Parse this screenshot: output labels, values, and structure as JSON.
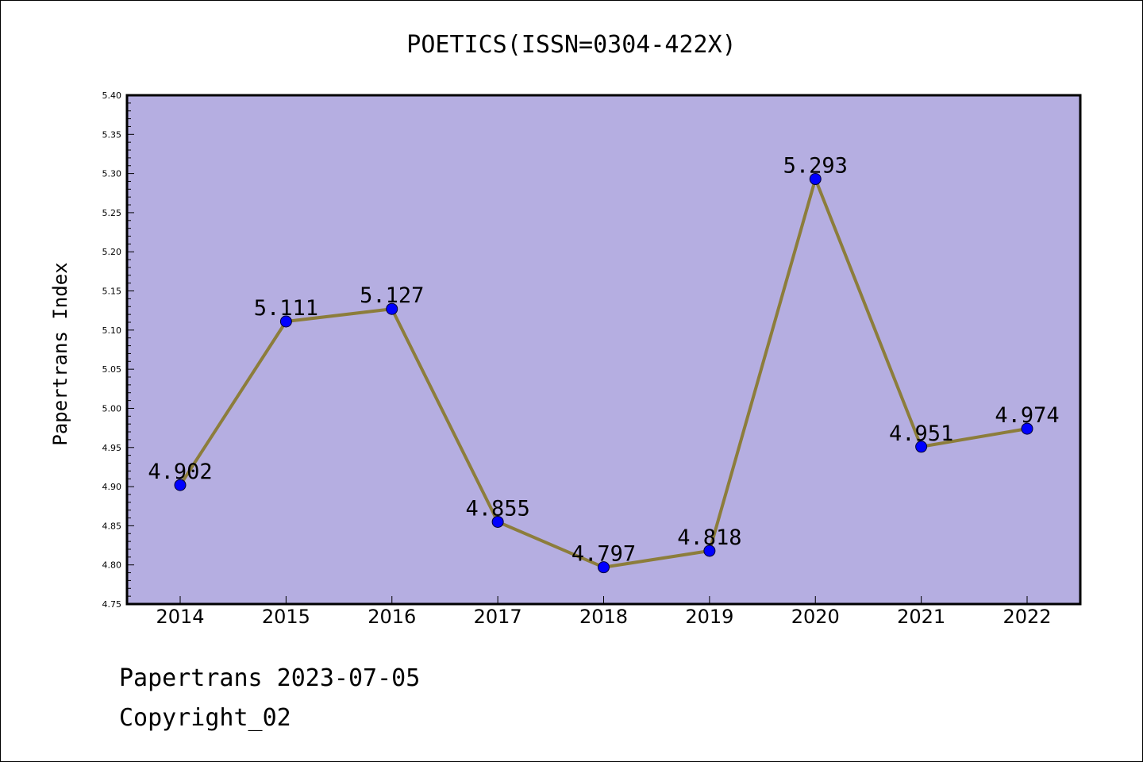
{
  "chart_data": {
    "type": "line",
    "title": "POETICS(ISSN=0304-422X)",
    "xlabel": "",
    "ylabel": "Papertrans Index",
    "categories": [
      "2014",
      "2015",
      "2016",
      "2017",
      "2018",
      "2019",
      "2020",
      "2021",
      "2022"
    ],
    "values": [
      4.902,
      5.111,
      5.127,
      4.855,
      4.797,
      4.818,
      5.293,
      4.951,
      4.974
    ],
    "data_labels": [
      "4.902",
      "5.111",
      "5.127",
      "4.855",
      "4.797",
      "4.818",
      "5.293",
      "4.951",
      "4.974"
    ],
    "ylim": [
      4.75,
      5.4
    ],
    "yticks": [
      "4.75",
      "4.80",
      "4.85",
      "4.90",
      "4.95",
      "5.00",
      "5.05",
      "5.10",
      "5.15",
      "5.20",
      "5.25",
      "5.30",
      "5.35",
      "5.40"
    ],
    "grid": false,
    "legend": "none",
    "colors": {
      "plot_background": "#b5aee1",
      "line": "#8c7d3b",
      "marker": "#0000ff"
    }
  },
  "footer": {
    "source_line": "Papertrans 2023-07-05",
    "copyright_line": "Copyright_02"
  }
}
